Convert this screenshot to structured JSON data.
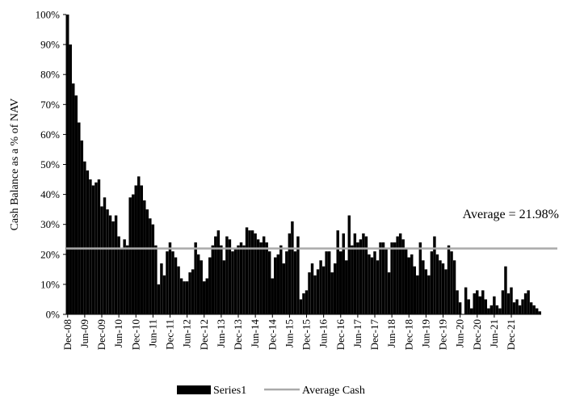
{
  "chart_data": {
    "type": "bar",
    "ylabel": "Cash Balance as a % of NAV",
    "ylim": [
      0,
      100
    ],
    "yticks": [
      "0%",
      "10%",
      "20%",
      "30%",
      "40%",
      "50%",
      "60%",
      "70%",
      "80%",
      "90%",
      "100%"
    ],
    "start_period": "Dec-08",
    "tick_labels": [
      "Dec-08",
      "Jun-09",
      "Dec-09",
      "Jun-10",
      "Dec-10",
      "Jun-11",
      "Dec-11",
      "Jun-12",
      "Dec-12",
      "Jun-13",
      "Dec-13",
      "Jun-14",
      "Dec-14",
      "Jun-15",
      "Dec-15",
      "Jun-16",
      "Dec-16",
      "Jun-17",
      "Dec-17",
      "Jun-18",
      "Dec-18",
      "Jun-19",
      "Dec-19",
      "Jun-20",
      "Dec-20",
      "Jun-21",
      "Dec-21"
    ],
    "series": [
      {
        "name": "Series1",
        "color": "#000000",
        "values": [
          100,
          90,
          77,
          73,
          64,
          58,
          51,
          48,
          45,
          43,
          44,
          45,
          36,
          39,
          35,
          33,
          31,
          33,
          26,
          22,
          25,
          23,
          39,
          40,
          43,
          46,
          43,
          38,
          35,
          32,
          30,
          23,
          10,
          17,
          13,
          21,
          24,
          21,
          19,
          16,
          12,
          11,
          11,
          14,
          15,
          24,
          20,
          18,
          11,
          12,
          19,
          23,
          26,
          28,
          23,
          18,
          26,
          25,
          21,
          22,
          23,
          24,
          23,
          29,
          28,
          28,
          27,
          25,
          24,
          26,
          24,
          21,
          12,
          19,
          20,
          23,
          17,
          21,
          27,
          31,
          21,
          26,
          5,
          7,
          8,
          14,
          17,
          13,
          15,
          18,
          16,
          21,
          21,
          14,
          17,
          28,
          21,
          27,
          18,
          33,
          23,
          27,
          24,
          25,
          27,
          26,
          20,
          19,
          21,
          18,
          24,
          24,
          22,
          14,
          24,
          24,
          26,
          27,
          25,
          22,
          19,
          20,
          16,
          13,
          24,
          18,
          15,
          13,
          21,
          26,
          20,
          18,
          17,
          15,
          23,
          21,
          18,
          8,
          4,
          0,
          9,
          5,
          2,
          7,
          8,
          6,
          8,
          5,
          2,
          3,
          6,
          3,
          2,
          8,
          16,
          7,
          9,
          4,
          5,
          3,
          5,
          7,
          8,
          4,
          3,
          2,
          1
        ]
      },
      {
        "name": "Average Cash",
        "type": "line",
        "color": "#aaaaaa",
        "value": 21.98
      }
    ],
    "annotation": "Average = 21.98%",
    "legend_position": "bottom",
    "grid": false
  }
}
